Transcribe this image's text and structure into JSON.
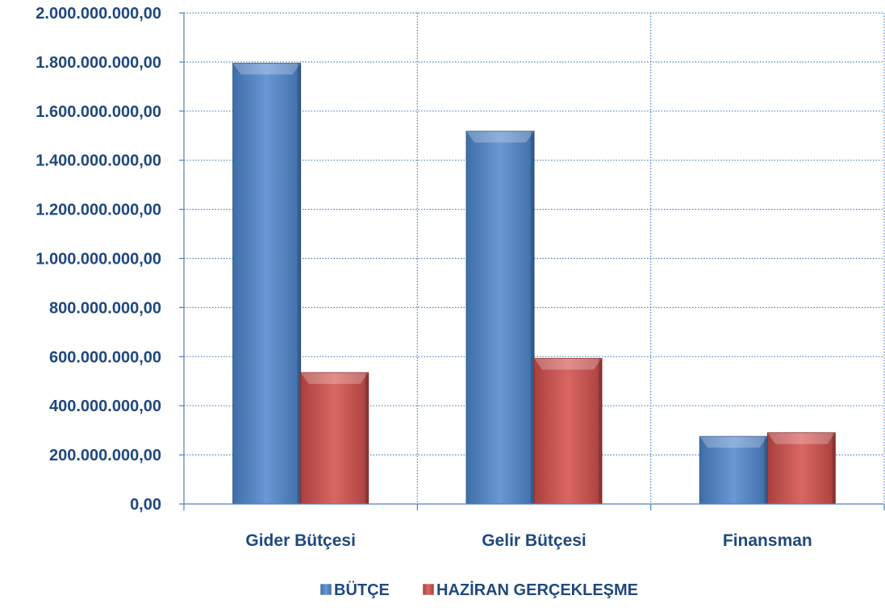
{
  "colors": {
    "axis_text": "#1F497D",
    "grid": "#4F81BD",
    "butce": "#4F81BD",
    "haziran": "#C0504D"
  },
  "chart_data": {
    "type": "bar",
    "title": "",
    "xlabel": "",
    "ylabel": "",
    "categories": [
      "Gider Bütçesi",
      "Gelir Bütçesi",
      "Finansman"
    ],
    "series": [
      {
        "name": "BÜTÇE",
        "values": [
          1795000000,
          1518000000,
          275000000
        ]
      },
      {
        "name": "HAZİRAN GERÇEKLEŞME",
        "values": [
          535000000,
          593000000,
          290000000
        ]
      }
    ],
    "ylim": [
      0,
      2000000000
    ],
    "y_ticks": [
      "0,00",
      "200.000.000,00",
      "400.000.000,00",
      "600.000.000,00",
      "800.000.000,00",
      "1.000.000.000,00",
      "1.200.000.000,00",
      "1.400.000.000,00",
      "1.600.000.000,00",
      "1.800.000.000,00",
      "2.000.000.000,00"
    ],
    "grid": true,
    "legend_position": "bottom"
  }
}
